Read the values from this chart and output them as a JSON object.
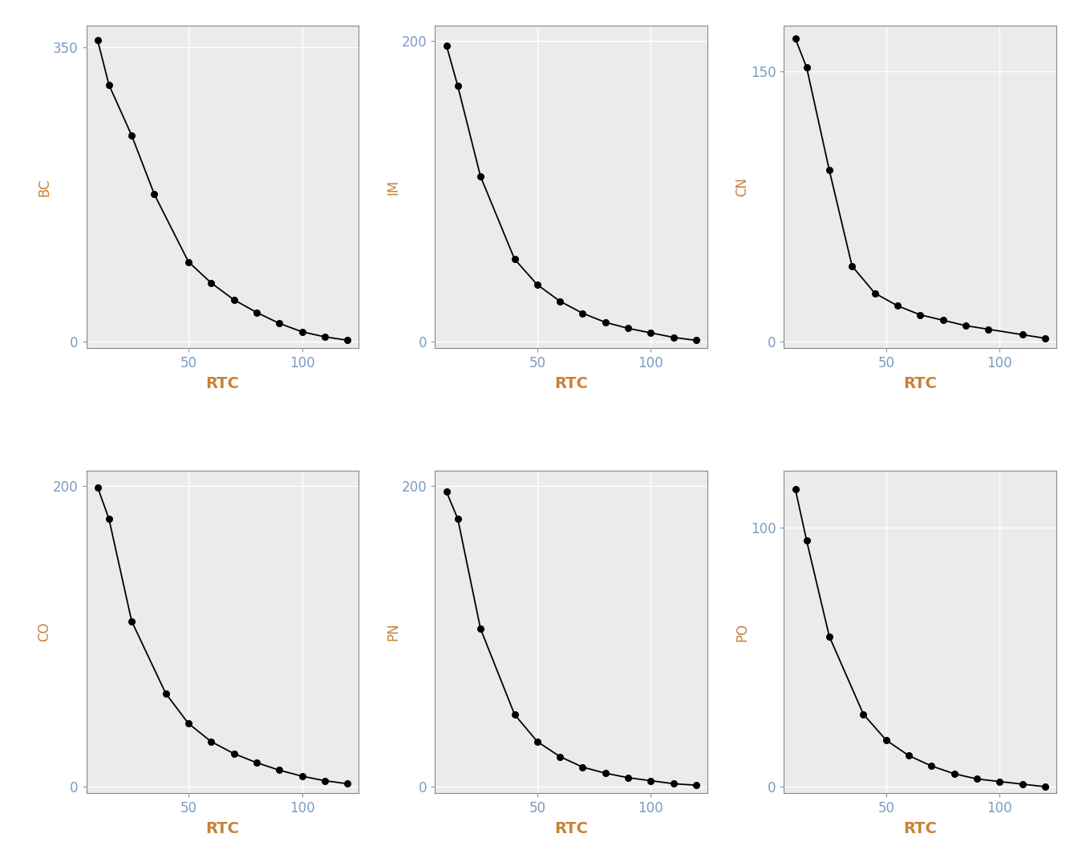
{
  "subplots": [
    {
      "ylabel": "BC",
      "xlabel": "RTC",
      "x": [
        10,
        15,
        25,
        35,
        50,
        60,
        70,
        80,
        90,
        100,
        110,
        120
      ],
      "y": [
        358,
        305,
        245,
        175,
        95,
        70,
        50,
        35,
        22,
        12,
        6,
        2
      ],
      "yticks": [
        0,
        350
      ],
      "xticks": [
        50,
        100
      ],
      "ylim": [
        0,
        375
      ]
    },
    {
      "ylabel": "IM",
      "xlabel": "RTC",
      "x": [
        10,
        15,
        25,
        40,
        50,
        60,
        70,
        80,
        90,
        100,
        110,
        120
      ],
      "y": [
        197,
        170,
        110,
        55,
        38,
        27,
        19,
        13,
        9,
        6,
        3,
        1
      ],
      "yticks": [
        0,
        200
      ],
      "xticks": [
        50,
        100
      ],
      "ylim": [
        0,
        210
      ]
    },
    {
      "ylabel": "CN",
      "xlabel": "RTC",
      "x": [
        10,
        15,
        25,
        35,
        45,
        55,
        65,
        75,
        85,
        95,
        110,
        120
      ],
      "y": [
        168,
        152,
        95,
        42,
        27,
        20,
        15,
        12,
        9,
        7,
        4,
        2
      ],
      "yticks": [
        0,
        150
      ],
      "xticks": [
        50,
        100
      ],
      "ylim": [
        0,
        175
      ]
    },
    {
      "ylabel": "CO",
      "xlabel": "RTC",
      "x": [
        10,
        15,
        25,
        40,
        50,
        60,
        70,
        80,
        90,
        100,
        110,
        120
      ],
      "y": [
        199,
        178,
        110,
        62,
        42,
        30,
        22,
        16,
        11,
        7,
        4,
        2
      ],
      "yticks": [
        0,
        200
      ],
      "xticks": [
        50,
        100
      ],
      "ylim": [
        0,
        210
      ]
    },
    {
      "ylabel": "PN",
      "xlabel": "RTC",
      "x": [
        10,
        15,
        25,
        40,
        50,
        60,
        70,
        80,
        90,
        100,
        110,
        120
      ],
      "y": [
        196,
        178,
        105,
        48,
        30,
        20,
        13,
        9,
        6,
        4,
        2,
        1
      ],
      "yticks": [
        0,
        200
      ],
      "xticks": [
        50,
        100
      ],
      "ylim": [
        0,
        210
      ]
    },
    {
      "ylabel": "PO",
      "xlabel": "RTC",
      "x": [
        10,
        15,
        25,
        40,
        50,
        60,
        70,
        80,
        90,
        100,
        110,
        120
      ],
      "y": [
        115,
        95,
        58,
        28,
        18,
        12,
        8,
        5,
        3,
        2,
        1,
        0
      ],
      "yticks": [
        0,
        100
      ],
      "xticks": [
        50,
        100
      ],
      "ylim": [
        0,
        122
      ]
    }
  ],
  "background_color": "#ffffff",
  "panel_bg": "#ebebeb",
  "grid_color": "#ffffff",
  "line_color": "#000000",
  "marker_color": "#000000",
  "axis_label_color": "#c8813a",
  "tick_label_color": "#7a9bc4",
  "xlabel_color": "#000000",
  "ylabel_rotation": 90,
  "title": ""
}
